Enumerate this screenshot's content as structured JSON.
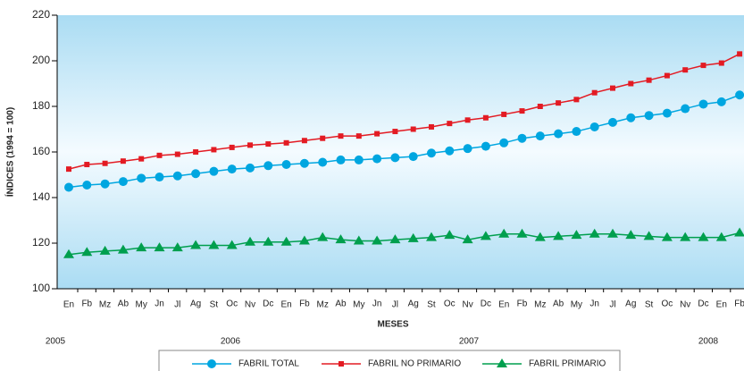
{
  "chart_data": {
    "type": "line",
    "y_label": "ÍNDICES (1994 = 100)",
    "x_label": "MESES",
    "categories": [
      "En",
      "Fb",
      "Mz",
      "Ab",
      "My",
      "Jn",
      "Jl",
      "Ag",
      "St",
      "Oc",
      "Nv",
      "Dc",
      "En",
      "Fb",
      "Mz",
      "Ab",
      "My",
      "Jn",
      "Jl",
      "Ag",
      "St",
      "Oc",
      "Nv",
      "Dc",
      "En",
      "Fb",
      "Mz",
      "Ab",
      "My",
      "Jn",
      "Jl",
      "Ag",
      "St",
      "Oc",
      "Nv",
      "Dc",
      "En",
      "Fb"
    ],
    "years": [
      "2005",
      "2006",
      "2007",
      "2008"
    ],
    "series": [
      {
        "name": "FABRIL TOTAL",
        "color": "#00a6e0",
        "marker": "circle",
        "values": [
          144.5,
          145.5,
          146,
          147,
          148.5,
          149,
          149.5,
          150.5,
          151.5,
          152.5,
          153,
          154,
          154.5,
          155,
          155.5,
          156.5,
          156.5,
          157,
          157.5,
          158,
          159.5,
          160.5,
          161.5,
          162.5,
          164,
          166,
          167,
          168,
          169,
          171,
          173,
          175,
          176,
          177,
          179,
          181,
          182,
          185
        ]
      },
      {
        "name": "FABRIL NO PRIMARIO",
        "color": "#e31b23",
        "marker": "square",
        "values": [
          152.5,
          154.5,
          155,
          156,
          157,
          158.5,
          159,
          160,
          161,
          162,
          163,
          163.5,
          164,
          165,
          166,
          167,
          167,
          168,
          169,
          170,
          171,
          172.5,
          174,
          175,
          176.5,
          178,
          180,
          181.5,
          183,
          186,
          188,
          190,
          191.5,
          193.5,
          196,
          198,
          199,
          203
        ]
      },
      {
        "name": "FABRIL PRIMARIO",
        "color": "#009f4e",
        "marker": "triangle",
        "values": [
          115,
          116,
          116.5,
          117,
          118,
          118,
          118,
          119,
          119,
          119,
          120.5,
          120.5,
          120.5,
          121,
          122.5,
          121.5,
          121,
          121,
          121.5,
          122,
          122.5,
          123.5,
          121.5,
          123,
          124,
          124,
          122.5,
          123,
          123.5,
          124,
          124,
          123.5,
          123,
          122.5,
          122.5,
          122.5,
          122.5,
          124.5
        ]
      }
    ],
    "ylim": [
      100,
      220
    ],
    "yticks": [
      100,
      120,
      140,
      160,
      180,
      200,
      220
    ]
  }
}
